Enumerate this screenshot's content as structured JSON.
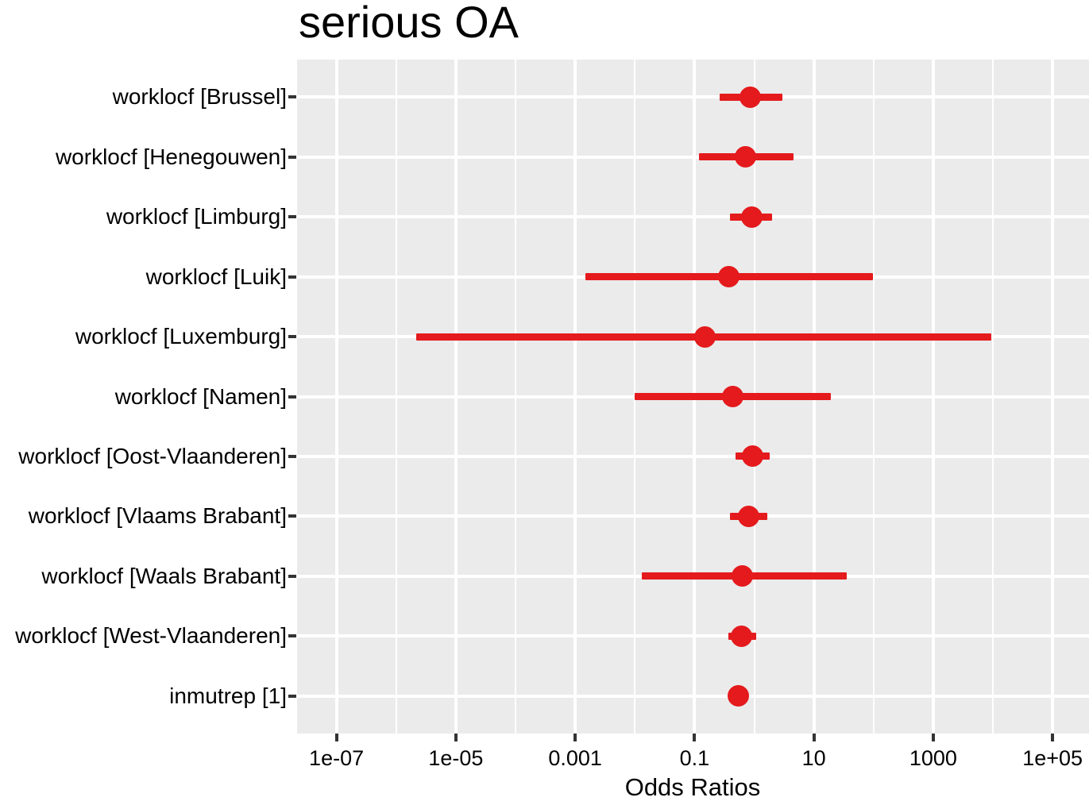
{
  "title": "serious OA",
  "x_axis_label": "Odds Ratios",
  "colors": {
    "accent_red": "#E41A1C",
    "panel_background": "#EBEBEB",
    "gridline": "#FFFFFF",
    "tick_mark": "#333333",
    "text": "#000000"
  },
  "chart_data": {
    "type": "scatter",
    "subtype": "forest-plot",
    "title": "serious OA",
    "xlabel": "Odds Ratios",
    "ylabel": "",
    "x_scale": "log10",
    "grid": true,
    "legend": false,
    "xlim": [
      2.2e-08,
      410000
    ],
    "x_log_range": [
      -7.66,
      5.61
    ],
    "x_tick_labels": [
      "1e-07",
      "1e-05",
      "0.001",
      "0.1",
      "10",
      "1000",
      "1e+05"
    ],
    "x_tick_exponents": [
      -7,
      -5,
      -3,
      -1,
      1,
      3,
      5
    ],
    "x_minor_exponents": [
      -6,
      -4,
      -2,
      0,
      2,
      4
    ],
    "categories": [
      "worklocf [Brussel]",
      "worklocf [Henegouwen]",
      "worklocf [Limburg]",
      "worklocf [Luik]",
      "worklocf [Luxemburg]",
      "worklocf [Namen]",
      "worklocf [Oost-Vlaanderen]",
      "worklocf [Vlaams Brabant]",
      "worklocf [Waals Brabant]",
      "worklocf [West-Vlaanderen]",
      "inmutrep [1]"
    ],
    "series": [
      {
        "name": "Odds Ratios",
        "points": [
          {
            "label": "worklocf [Brussel]",
            "odds_ratio": 0.85,
            "ci_low": 0.26,
            "ci_high": 3.0
          },
          {
            "label": "worklocf [Henegouwen]",
            "odds_ratio": 0.72,
            "ci_low": 0.12,
            "ci_high": 4.5
          },
          {
            "label": "worklocf [Limburg]",
            "odds_ratio": 0.9,
            "ci_low": 0.39,
            "ci_high": 2.0
          },
          {
            "label": "worklocf [Luik]",
            "odds_ratio": 0.38,
            "ci_low": 0.0015,
            "ci_high": 97
          },
          {
            "label": "worklocf [Luxemburg]",
            "odds_ratio": 0.15,
            "ci_low": 2.2e-06,
            "ci_high": 9300
          },
          {
            "label": "worklocf [Namen]",
            "odds_ratio": 0.44,
            "ci_low": 0.01,
            "ci_high": 19
          },
          {
            "label": "worklocf [Oost-Vlaanderen]",
            "odds_ratio": 0.93,
            "ci_low": 0.48,
            "ci_high": 1.8
          },
          {
            "label": "worklocf [Vlaams Brabant]",
            "odds_ratio": 0.8,
            "ci_low": 0.39,
            "ci_high": 1.65
          },
          {
            "label": "worklocf [Waals Brabant]",
            "odds_ratio": 0.64,
            "ci_low": 0.013,
            "ci_high": 35
          },
          {
            "label": "worklocf [West-Vlaanderen]",
            "odds_ratio": 0.62,
            "ci_low": 0.37,
            "ci_high": 1.07
          },
          {
            "label": "inmutrep [1]",
            "odds_ratio": 0.54,
            "ci_low": null,
            "ci_high": null
          }
        ]
      }
    ]
  }
}
